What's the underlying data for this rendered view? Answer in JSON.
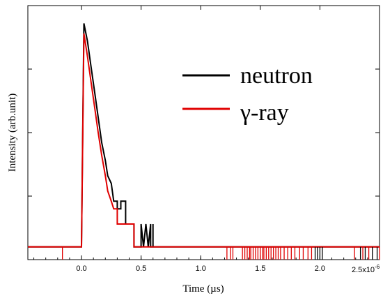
{
  "chart_data": {
    "type": "line",
    "xlabel": "Time (µs)",
    "ylabel": "Intensity (arb.unit)",
    "x_multiplier": {
      "base": "2.5x10",
      "exponent": "-6"
    },
    "xlim": [
      -0.45,
      2.5
    ],
    "ylim": [
      0,
      1
    ],
    "x_ticks": [
      0.0,
      0.5,
      1.0,
      1.5,
      2.0
    ],
    "x_tick_labels": [
      "0.0",
      "0.5",
      "1.0",
      "1.5",
      "2.0"
    ],
    "legend_position": "top-right",
    "grid": false,
    "series": [
      {
        "name": "neutron",
        "color": "#000000",
        "points": [
          [
            -0.45,
            0.05
          ],
          [
            0.0,
            0.05
          ],
          [
            0.02,
            0.93
          ],
          [
            0.05,
            0.86
          ],
          [
            0.08,
            0.76
          ],
          [
            0.11,
            0.66
          ],
          [
            0.14,
            0.56
          ],
          [
            0.17,
            0.46
          ],
          [
            0.2,
            0.39
          ],
          [
            0.22,
            0.33
          ],
          [
            0.25,
            0.3
          ],
          [
            0.27,
            0.23
          ],
          [
            0.3,
            0.23
          ],
          [
            0.3,
            0.2
          ],
          [
            0.33,
            0.2
          ],
          [
            0.33,
            0.23
          ],
          [
            0.37,
            0.23
          ],
          [
            0.37,
            0.14
          ],
          [
            0.44,
            0.14
          ],
          [
            0.44,
            0.05
          ],
          [
            0.5,
            0.05
          ],
          [
            0.5,
            0.14
          ],
          [
            0.52,
            0.05
          ],
          [
            0.54,
            0.14
          ],
          [
            0.56,
            0.05
          ],
          [
            0.58,
            0.14
          ],
          [
            0.58,
            0.05
          ],
          [
            0.6,
            0.05
          ],
          [
            0.6,
            0.14
          ],
          [
            0.6,
            0.05
          ],
          [
            2.5,
            0.05
          ]
        ]
      },
      {
        "name": "γ-ray",
        "color": "#e00000",
        "points": [
          [
            -0.45,
            0.05
          ],
          [
            0.0,
            0.05
          ],
          [
            0.02,
            0.89
          ],
          [
            0.05,
            0.8
          ],
          [
            0.08,
            0.7
          ],
          [
            0.11,
            0.6
          ],
          [
            0.14,
            0.5
          ],
          [
            0.17,
            0.41
          ],
          [
            0.2,
            0.33
          ],
          [
            0.22,
            0.27
          ],
          [
            0.25,
            0.23
          ],
          [
            0.27,
            0.2
          ],
          [
            0.3,
            0.2
          ],
          [
            0.3,
            0.14
          ],
          [
            0.44,
            0.14
          ],
          [
            0.44,
            0.05
          ],
          [
            2.5,
            0.05
          ]
        ]
      }
    ],
    "noise_spikes": {
      "neutron_x": [
        1.96,
        1.98,
        2.0,
        2.02,
        2.34,
        2.38,
        2.44,
        2.48
      ],
      "gamma_x": [
        -0.16,
        1.22,
        1.25,
        1.27,
        1.35,
        1.37,
        1.39,
        1.41,
        1.42,
        1.44,
        1.46,
        1.48,
        1.5,
        1.52,
        1.53,
        1.55,
        1.57,
        1.59,
        1.61,
        1.63,
        1.65,
        1.67,
        1.7,
        1.73,
        1.76,
        1.79,
        1.83,
        1.86,
        1.9,
        1.93,
        2.29,
        2.36,
        2.41,
        2.5
      ],
      "base_y": 0.05,
      "top_y": 0.0
    }
  },
  "legend": {
    "neutron": {
      "label": "neutron",
      "color": "#000000"
    },
    "gamma": {
      "label": "γ-ray",
      "color": "#e00000"
    }
  }
}
